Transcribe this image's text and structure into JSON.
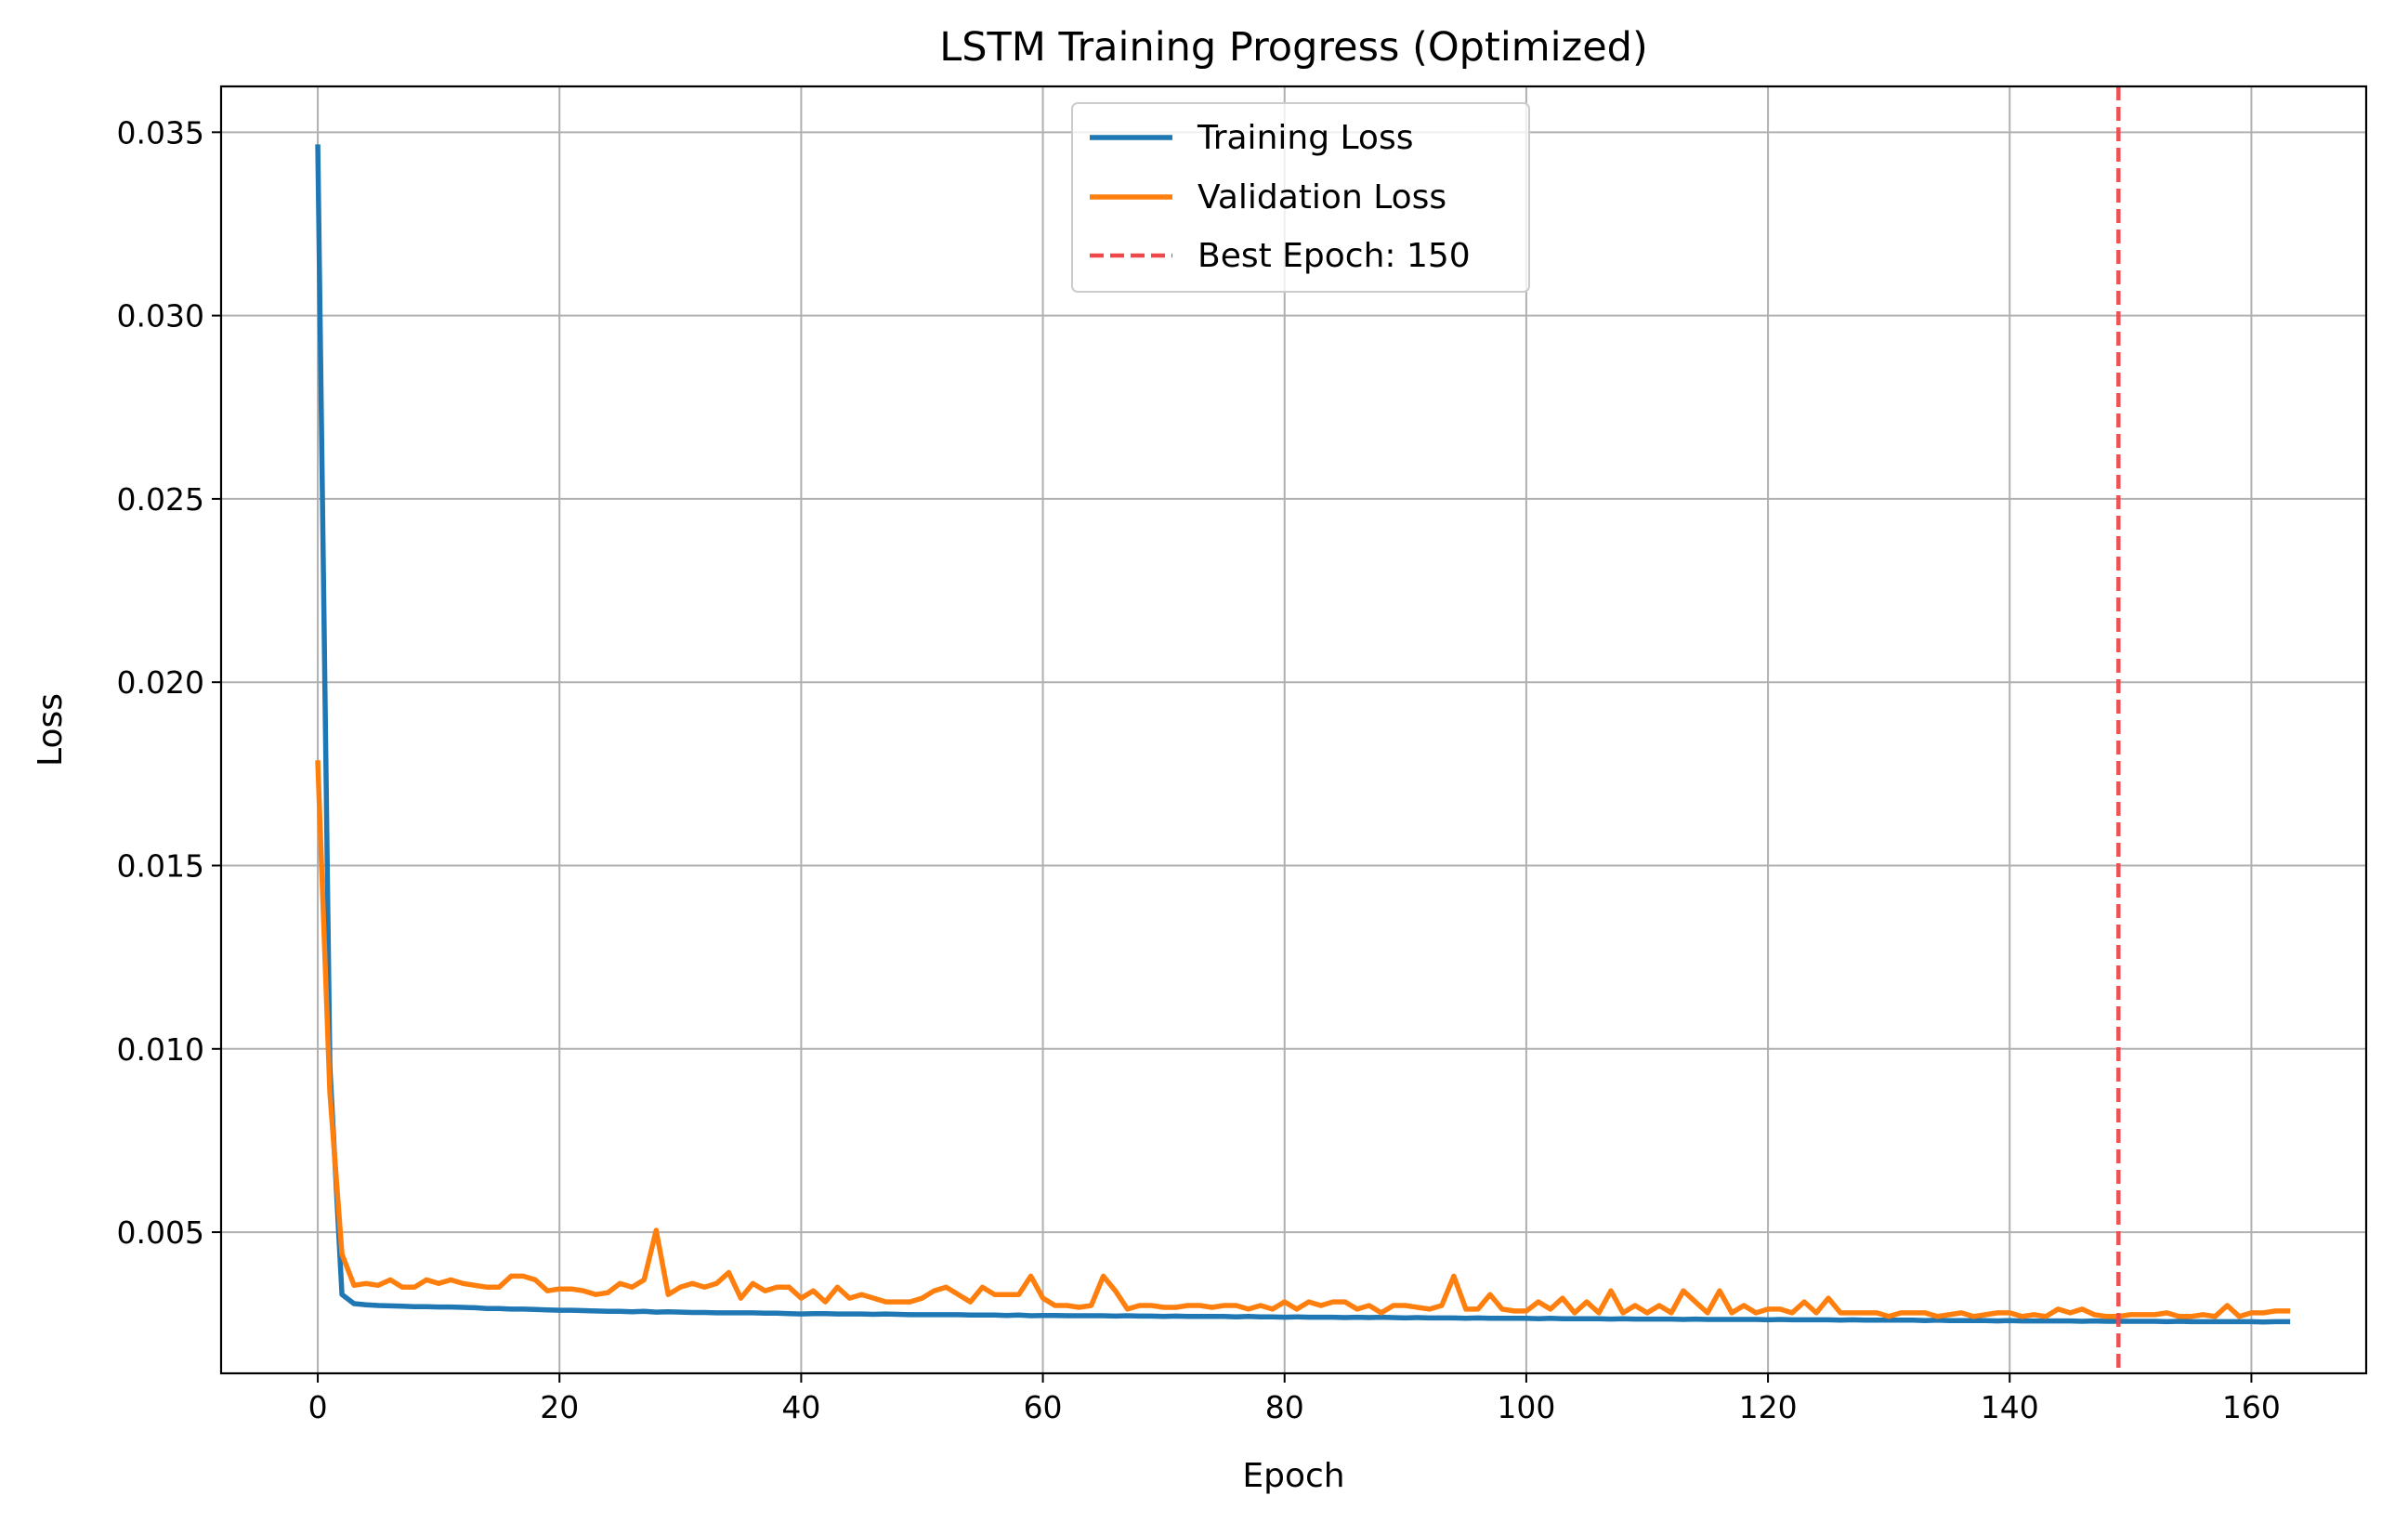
{
  "chart_data": {
    "type": "line",
    "title": "LSTM Training Progress (Optimized)",
    "xlabel": "Epoch",
    "ylabel": "Loss",
    "xlim": [
      -8,
      169.5
    ],
    "ylim": [
      0.00115,
      0.03625
    ],
    "xticks": [
      0,
      20,
      40,
      60,
      80,
      100,
      120,
      140,
      160
    ],
    "yticks": [
      0.005,
      0.01,
      0.015,
      0.02,
      0.025,
      0.03,
      0.035
    ],
    "ytick_labels": [
      "0.005",
      "0.010",
      "0.015",
      "0.020",
      "0.025",
      "0.030",
      "0.035"
    ],
    "grid": true,
    "legend_position": "upper center",
    "best_epoch_line": {
      "x": 149,
      "label": "Best Epoch: 150",
      "color": "#f0484a",
      "style": "dashed"
    },
    "series": [
      {
        "name": "Training Loss",
        "color": "#1f77b4",
        "values": [
          0.0346,
          0.0095,
          0.0033,
          0.00305,
          0.00302,
          0.003,
          0.00299,
          0.00298,
          0.00297,
          0.00297,
          0.00296,
          0.00296,
          0.00295,
          0.00294,
          0.00292,
          0.00292,
          0.0029,
          0.0029,
          0.00289,
          0.00288,
          0.00287,
          0.00287,
          0.00286,
          0.00285,
          0.00284,
          0.00284,
          0.00283,
          0.00284,
          0.00282,
          0.00283,
          0.00282,
          0.00281,
          0.00281,
          0.0028,
          0.0028,
          0.0028,
          0.0028,
          0.00279,
          0.00279,
          0.00278,
          0.00277,
          0.00278,
          0.00278,
          0.00277,
          0.00277,
          0.00277,
          0.00276,
          0.00277,
          0.00276,
          0.00275,
          0.00275,
          0.00275,
          0.00275,
          0.00275,
          0.00274,
          0.00274,
          0.00274,
          0.00273,
          0.00274,
          0.00272,
          0.00273,
          0.00273,
          0.00272,
          0.00272,
          0.00272,
          0.00272,
          0.00271,
          0.00272,
          0.00271,
          0.00271,
          0.0027,
          0.00271,
          0.0027,
          0.0027,
          0.0027,
          0.0027,
          0.00269,
          0.0027,
          0.00269,
          0.00269,
          0.00268,
          0.00269,
          0.00268,
          0.00268,
          0.00268,
          0.00267,
          0.00268,
          0.00267,
          0.00268,
          0.00267,
          0.00266,
          0.00267,
          0.00266,
          0.00266,
          0.00266,
          0.00265,
          0.00266,
          0.00265,
          0.00265,
          0.00265,
          0.00265,
          0.00264,
          0.00265,
          0.00264,
          0.00264,
          0.00264,
          0.00264,
          0.00263,
          0.00264,
          0.00263,
          0.00263,
          0.00263,
          0.00263,
          0.00262,
          0.00263,
          0.00262,
          0.00262,
          0.00262,
          0.00262,
          0.00262,
          0.00261,
          0.00262,
          0.00261,
          0.00261,
          0.00261,
          0.00261,
          0.0026,
          0.00261,
          0.0026,
          0.0026,
          0.0026,
          0.0026,
          0.0026,
          0.00259,
          0.0026,
          0.00259,
          0.00259,
          0.00259,
          0.00259,
          0.00258,
          0.00259,
          0.00258,
          0.00258,
          0.00258,
          0.00258,
          0.00258,
          0.00257,
          0.00258,
          0.00257,
          0.00257,
          0.00257,
          0.00257,
          0.00257,
          0.00256,
          0.00257,
          0.00256,
          0.00256,
          0.00256,
          0.00256,
          0.00256,
          0.00256,
          0.00255,
          0.00256,
          0.00256
        ]
      },
      {
        "name": "Validation Loss",
        "color": "#ff7f0e",
        "values": [
          0.0178,
          0.0088,
          0.0044,
          0.00355,
          0.0036,
          0.00355,
          0.0037,
          0.0035,
          0.0035,
          0.0037,
          0.0036,
          0.0037,
          0.0036,
          0.00355,
          0.0035,
          0.0035,
          0.0038,
          0.0038,
          0.0037,
          0.0034,
          0.00345,
          0.00345,
          0.0034,
          0.0033,
          0.00335,
          0.0036,
          0.0035,
          0.0037,
          0.00505,
          0.0033,
          0.0035,
          0.0036,
          0.0035,
          0.0036,
          0.0039,
          0.0032,
          0.0036,
          0.0034,
          0.0035,
          0.0035,
          0.0032,
          0.0034,
          0.0031,
          0.0035,
          0.0032,
          0.0033,
          0.0032,
          0.0031,
          0.0031,
          0.0031,
          0.0032,
          0.0034,
          0.0035,
          0.0033,
          0.0031,
          0.0035,
          0.0033,
          0.0033,
          0.0033,
          0.0038,
          0.0032,
          0.003,
          0.003,
          0.00295,
          0.003,
          0.0038,
          0.0034,
          0.0029,
          0.003,
          0.003,
          0.00295,
          0.00295,
          0.003,
          0.003,
          0.00295,
          0.003,
          0.003,
          0.0029,
          0.003,
          0.0029,
          0.0031,
          0.0029,
          0.0031,
          0.003,
          0.0031,
          0.0031,
          0.0029,
          0.003,
          0.0028,
          0.003,
          0.003,
          0.00295,
          0.0029,
          0.003,
          0.0038,
          0.0029,
          0.0029,
          0.0033,
          0.0029,
          0.00285,
          0.00285,
          0.0031,
          0.0029,
          0.0032,
          0.0028,
          0.0031,
          0.0028,
          0.0034,
          0.0028,
          0.003,
          0.0028,
          0.003,
          0.0028,
          0.0034,
          0.0031,
          0.0028,
          0.0034,
          0.0028,
          0.003,
          0.0028,
          0.0029,
          0.0029,
          0.0028,
          0.0031,
          0.0028,
          0.0032,
          0.0028,
          0.0028,
          0.0028,
          0.0028,
          0.0027,
          0.0028,
          0.0028,
          0.0028,
          0.0027,
          0.00275,
          0.0028,
          0.0027,
          0.00275,
          0.0028,
          0.0028,
          0.0027,
          0.00275,
          0.0027,
          0.0029,
          0.0028,
          0.0029,
          0.00275,
          0.0027,
          0.0027,
          0.00275,
          0.00275,
          0.00275,
          0.0028,
          0.0027,
          0.0027,
          0.00275,
          0.0027,
          0.003,
          0.0027,
          0.0028,
          0.0028,
          0.00285,
          0.00285
        ]
      }
    ]
  }
}
